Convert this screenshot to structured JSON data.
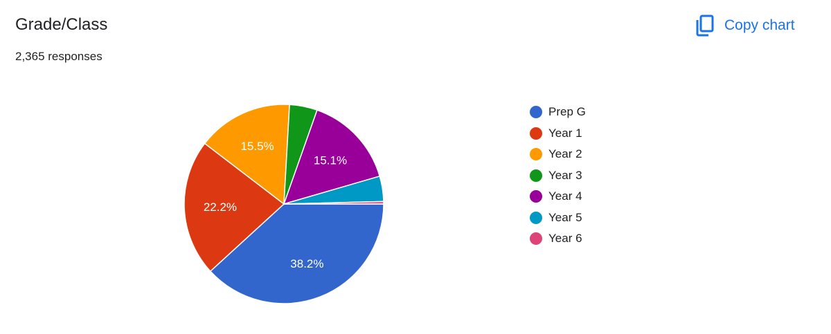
{
  "header": {
    "title": "Grade/Class",
    "responses": "2,365 responses",
    "copy_label": "Copy chart",
    "copy_icon": "copy-icon"
  },
  "chart_data": {
    "type": "pie",
    "categories": [
      "Prep G",
      "Year 1",
      "Year 2",
      "Year 3",
      "Year 4",
      "Year 5",
      "Year 6"
    ],
    "values": [
      38.2,
      22.2,
      15.5,
      4.5,
      15.1,
      4.1,
      0.4
    ],
    "labels_shown": [
      "38.2%",
      "22.2%",
      "15.5%",
      "",
      "15.1%",
      "",
      ""
    ],
    "colors": [
      "#3366cc",
      "#dc3912",
      "#ff9900",
      "#109618",
      "#990099",
      "#0099c6",
      "#dd4477"
    ],
    "legend_position": "right"
  }
}
